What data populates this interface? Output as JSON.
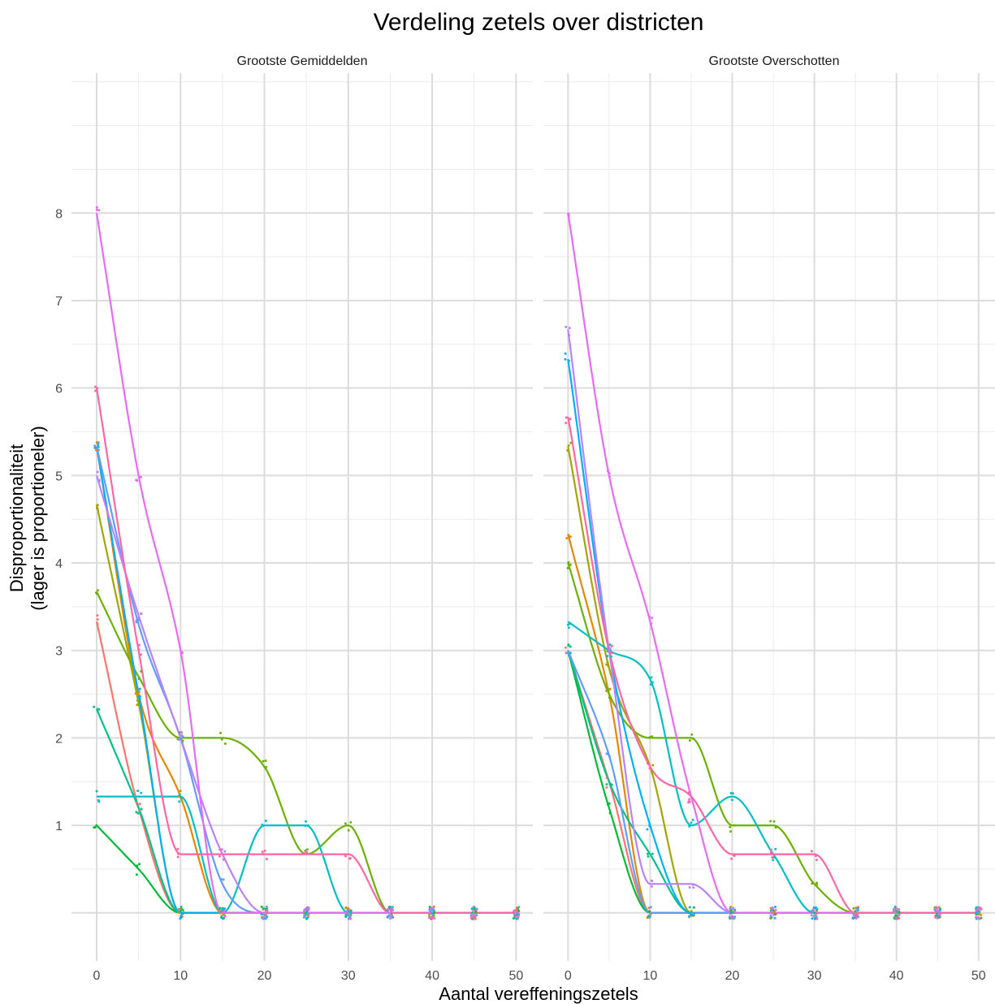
{
  "chart_data": {
    "type": "line",
    "title": "Verdeling zetels over districten",
    "xlabel": "Aantal vereffeningszetels",
    "ylabel_lines": [
      "Disproportionaliteit",
      "(lager is proportioneler)"
    ],
    "xlim": [
      -3,
      52
    ],
    "ylim": [
      -0.55,
      9.6
    ],
    "x_ticks": [
      0,
      10,
      20,
      30,
      40,
      50
    ],
    "y_ticks": [
      1,
      2,
      3,
      4,
      5,
      6,
      7,
      8
    ],
    "x_minor_grid": [
      5,
      15,
      25,
      35,
      45
    ],
    "y_minor_grid": [
      0.5,
      1.5,
      2.5,
      3.5,
      4.5,
      5.5,
      6.5,
      7.5,
      8.5,
      9.0,
      9.5
    ],
    "x_samples": [
      0,
      5,
      10,
      15,
      20,
      25,
      30,
      35,
      40,
      45,
      50
    ],
    "palette": [
      "#F8766D",
      "#E58700",
      "#A3A500",
      "#6BB100",
      "#00BA38",
      "#00C08B",
      "#00BFC4",
      "#00B0F6",
      "#619CFF",
      "#B983FF",
      "#E76BF3",
      "#FF67A4"
    ],
    "panels": [
      {
        "name": "Grootste Gemiddelden",
        "series": [
          {
            "color": "#F8766D",
            "values": [
              3.33,
              1.2,
              0,
              0,
              0,
              0,
              0,
              0,
              0,
              0,
              0
            ]
          },
          {
            "color": "#E58700",
            "values": [
              5.33,
              2.5,
              1.33,
              0,
              0,
              0,
              0,
              0,
              0,
              0,
              0
            ]
          },
          {
            "color": "#A3A500",
            "values": [
              4.67,
              2.4,
              0,
              0,
              0,
              0,
              0,
              0,
              0,
              0,
              0
            ]
          },
          {
            "color": "#6BB100",
            "values": [
              3.67,
              2.7,
              2.0,
              2.0,
              1.67,
              0.67,
              1.0,
              0,
              0,
              0,
              0
            ]
          },
          {
            "color": "#00BA38",
            "values": [
              1.0,
              0.5,
              0,
              0,
              0,
              0,
              0,
              0,
              0,
              0,
              0
            ]
          },
          {
            "color": "#00C08B",
            "values": [
              2.33,
              1.2,
              0,
              0,
              0,
              0,
              0,
              0,
              0,
              0,
              0
            ]
          },
          {
            "color": "#00BFC4",
            "values": [
              1.33,
              1.33,
              1.33,
              0,
              1.0,
              1.0,
              0,
              0,
              0,
              0,
              0
            ]
          },
          {
            "color": "#00B0F6",
            "values": [
              5.33,
              2.5,
              0,
              0,
              0,
              0,
              0,
              0,
              0,
              0,
              0
            ]
          },
          {
            "color": "#619CFF",
            "values": [
              5.33,
              3.3,
              2.0,
              0.33,
              0,
              0,
              0,
              0,
              0,
              0,
              0
            ]
          },
          {
            "color": "#B983FF",
            "values": [
              5.0,
              3.4,
              2.0,
              0.67,
              0,
              0,
              0,
              0,
              0,
              0,
              0
            ]
          },
          {
            "color": "#E76BF3",
            "values": [
              8.0,
              5.0,
              3.0,
              0,
              0,
              0,
              0,
              0,
              0,
              0,
              0
            ]
          },
          {
            "color": "#FF67A4",
            "values": [
              6.0,
              3.0,
              0.67,
              0.67,
              0.67,
              0.67,
              0.67,
              0,
              0,
              0,
              0
            ]
          }
        ]
      },
      {
        "name": "Grootste Overschotten",
        "series": [
          {
            "color": "#F8766D",
            "values": [
              3.0,
              1.5,
              0,
              0,
              0,
              0,
              0,
              0,
              0,
              0,
              0
            ]
          },
          {
            "color": "#E58700",
            "values": [
              4.33,
              2.5,
              0,
              0,
              0,
              0,
              0,
              0,
              0,
              0,
              0
            ]
          },
          {
            "color": "#A3A500",
            "values": [
              5.33,
              2.8,
              1.67,
              0,
              0,
              0,
              0,
              0,
              0,
              0,
              0
            ]
          },
          {
            "color": "#6BB100",
            "values": [
              4.0,
              2.5,
              2.0,
              2.0,
              1.0,
              1.0,
              0.33,
              0,
              0,
              0,
              0
            ]
          },
          {
            "color": "#00BA38",
            "values": [
              3.0,
              1.2,
              0,
              0,
              0,
              0,
              0,
              0,
              0,
              0,
              0
            ]
          },
          {
            "color": "#00C08B",
            "values": [
              3.0,
              1.5,
              0.67,
              0,
              0,
              0,
              0,
              0,
              0,
              0,
              0
            ]
          },
          {
            "color": "#00BFC4",
            "values": [
              3.33,
              3.0,
              2.67,
              1.0,
              1.33,
              0.67,
              0,
              0,
              0,
              0,
              0
            ]
          },
          {
            "color": "#00B0F6",
            "values": [
              6.33,
              3.0,
              1.0,
              0,
              0,
              0,
              0,
              0,
              0,
              0,
              0
            ]
          },
          {
            "color": "#619CFF",
            "values": [
              3.0,
              1.8,
              0,
              0,
              0,
              0,
              0,
              0,
              0,
              0,
              0
            ]
          },
          {
            "color": "#B983FF",
            "values": [
              6.67,
              3.0,
              0.33,
              0.33,
              0,
              0,
              0,
              0,
              0,
              0,
              0
            ]
          },
          {
            "color": "#E76BF3",
            "values": [
              8.0,
              5.0,
              3.33,
              1.33,
              0,
              0,
              0,
              0,
              0,
              0,
              0
            ]
          },
          {
            "color": "#FF67A4",
            "values": [
              5.67,
              3.0,
              1.67,
              1.33,
              0.67,
              0.67,
              0.67,
              0,
              0,
              0,
              0
            ]
          }
        ]
      }
    ]
  }
}
